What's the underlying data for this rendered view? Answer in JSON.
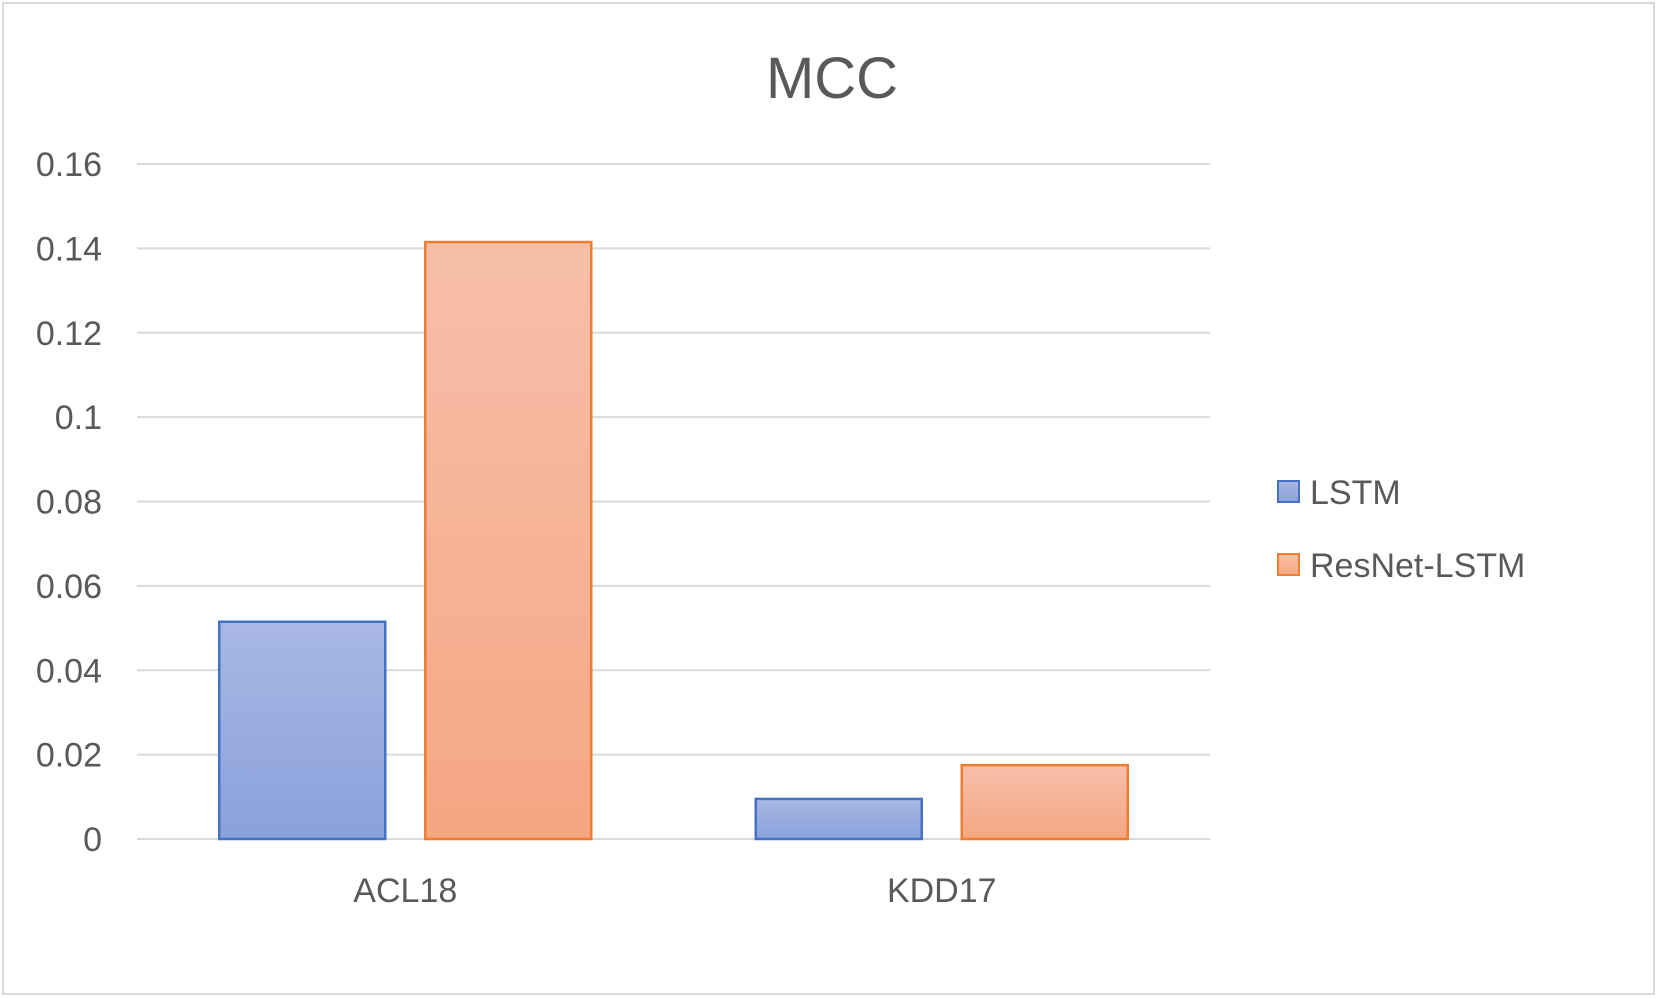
{
  "chart_data": {
    "type": "bar",
    "title": "MCC",
    "xlabel": "",
    "ylabel": "",
    "categories": [
      "ACL18",
      "KDD17"
    ],
    "series": [
      {
        "name": "LSTM",
        "values": [
          0.0515,
          0.0095
        ],
        "fill_top": "#a9b8e4",
        "fill_bottom": "#8aa1db",
        "stroke": "#4472c4"
      },
      {
        "name": "ResNet-LSTM",
        "values": [
          0.1415,
          0.0175
        ],
        "fill_top": "#f7bfab",
        "fill_bottom": "#f5a682",
        "stroke": "#ed7d31"
      }
    ],
    "ylim": [
      0,
      0.16
    ],
    "yticks": [
      "0",
      "0.02",
      "0.04",
      "0.06",
      "0.08",
      "0.1",
      "0.12",
      "0.14",
      "0.16"
    ],
    "grid": true,
    "legend_position": "right"
  }
}
